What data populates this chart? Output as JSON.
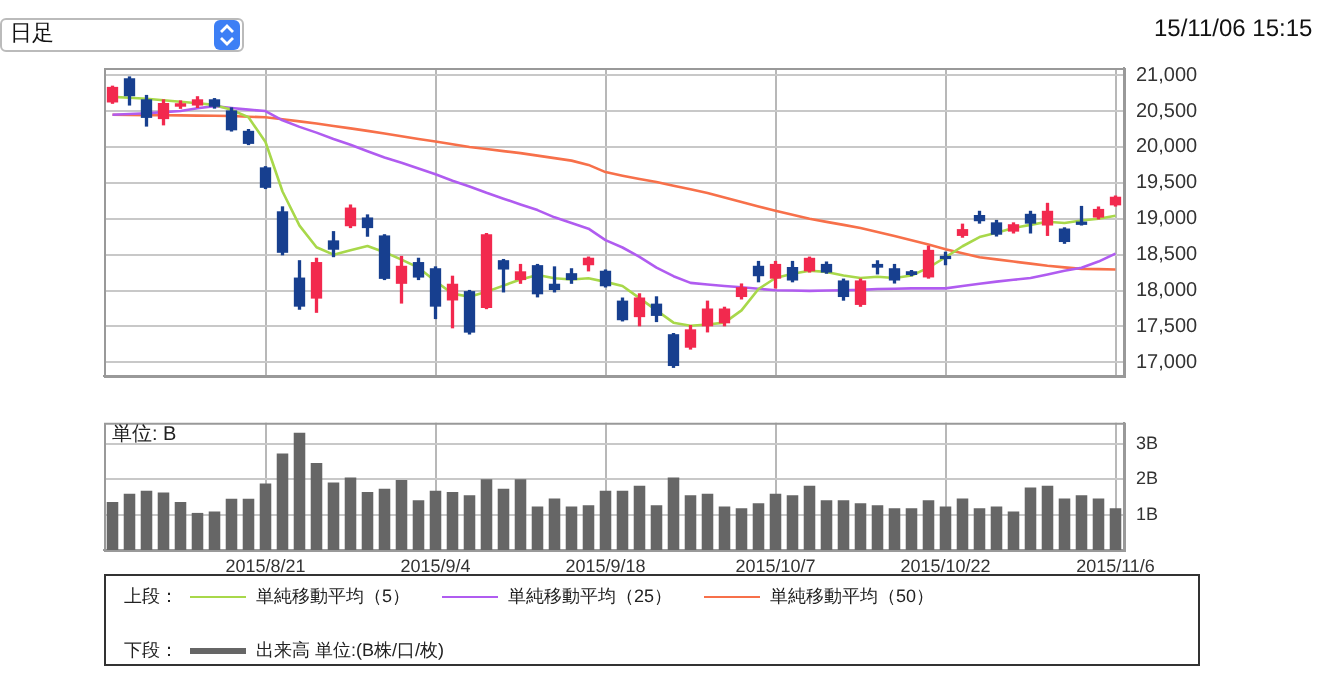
{
  "chart_data": [
    {
      "type": "candlestick",
      "annotations": [
        "日足",
        "15/11/06 15:15"
      ],
      "legend": "bottom",
      "legend_title": "上段：",
      "tick_labels": "y",
      "grid": true,
      "categories": [
        null,
        null,
        null,
        null,
        null,
        null,
        null,
        null,
        null,
        "2015/8/21",
        null,
        null,
        null,
        null,
        null,
        null,
        null,
        null,
        null,
        "2015/9/4",
        null,
        null,
        null,
        null,
        null,
        null,
        null,
        null,
        null,
        "2015/9/18",
        null,
        null,
        null,
        null,
        null,
        null,
        null,
        null,
        null,
        "2015/10/7",
        null,
        null,
        null,
        null,
        null,
        null,
        null,
        null,
        null,
        "2015/10/22",
        null,
        null,
        null,
        null,
        null,
        null,
        null,
        null,
        null,
        "2015/11/6"
      ],
      "ylim": [
        16810,
        21100
      ],
      "yticks": [
        {
          "value": 17000,
          "label": "17,000"
        },
        {
          "value": 17500,
          "label": "17,500"
        },
        {
          "value": 18000,
          "label": "18,000"
        },
        {
          "value": 18500,
          "label": "18,500"
        },
        {
          "value": 19000,
          "label": "19,000"
        },
        {
          "value": 19500,
          "label": "19,500"
        },
        {
          "value": 20000,
          "label": "20,000"
        },
        {
          "value": 20500,
          "label": "20,500"
        },
        {
          "value": 21000,
          "label": "21,000"
        }
      ],
      "ohlc": [
        [
          20629,
          20845,
          20610,
          20828
        ],
        [
          20948,
          20974,
          20586,
          20716
        ],
        [
          20655,
          20716,
          20293,
          20414
        ],
        [
          20397,
          20655,
          20310,
          20603
        ],
        [
          20570,
          20640,
          20540,
          20600
        ],
        [
          20586,
          20698,
          20552,
          20655
        ],
        [
          20655,
          20672,
          20543,
          20569
        ],
        [
          20500,
          20543,
          20224,
          20241
        ],
        [
          20216,
          20241,
          20035,
          20052
        ],
        [
          19707,
          19724,
          19423,
          19440
        ],
        [
          19095,
          19164,
          18500,
          18535
        ],
        [
          18172,
          18414,
          17742,
          17785
        ],
        [
          17897,
          18448,
          17699,
          18388
        ],
        [
          18690,
          18819,
          18474,
          18578
        ],
        [
          18905,
          19190,
          18879,
          19147
        ],
        [
          19009,
          19052,
          18759,
          18879
        ],
        [
          18759,
          18776,
          18155,
          18172
        ],
        [
          18103,
          18474,
          17828,
          18336
        ],
        [
          18388,
          18448,
          18155,
          18190
        ],
        [
          18302,
          18328,
          17612,
          17785
        ],
        [
          17871,
          18198,
          17483,
          18086
        ],
        [
          17983,
          18000,
          17397,
          17423
        ],
        [
          17768,
          18793,
          17750,
          18776
        ],
        [
          18414,
          18431,
          17983,
          18302
        ],
        [
          18155,
          18362,
          18103,
          18259
        ],
        [
          18345,
          18362,
          17914,
          17957
        ],
        [
          18086,
          18328,
          17983,
          18017
        ],
        [
          18233,
          18302,
          18103,
          18155
        ],
        [
          18362,
          18465,
          18276,
          18448
        ],
        [
          18267,
          18285,
          18052,
          18069
        ],
        [
          17851,
          17894,
          17579,
          17596
        ],
        [
          17639,
          17953,
          17511,
          17894
        ],
        [
          17809,
          17911,
          17570,
          17656
        ],
        [
          17383,
          17400,
          16932,
          16958
        ],
        [
          17213,
          17511,
          17187,
          17451
        ],
        [
          17511,
          17851,
          17426,
          17741
        ],
        [
          17553,
          17766,
          17511,
          17741
        ],
        [
          17919,
          18090,
          17885,
          18038
        ],
        [
          18336,
          18404,
          18124,
          18209
        ],
        [
          18175,
          18404,
          18038,
          18362
        ],
        [
          18319,
          18404,
          18124,
          18149
        ],
        [
          18277,
          18464,
          18260,
          18447
        ],
        [
          18362,
          18396,
          18243,
          18260
        ],
        [
          18132,
          18158,
          17868,
          17919
        ],
        [
          17809,
          18158,
          17783,
          18132
        ],
        [
          18362,
          18413,
          18234,
          18328
        ],
        [
          18302,
          18362,
          18107,
          18149
        ],
        [
          18260,
          18277,
          18209,
          18226
        ],
        [
          18192,
          18617,
          18175,
          18558
        ],
        [
          18464,
          18532,
          18362,
          18447
        ],
        [
          18770,
          18923,
          18745,
          18847
        ],
        [
          19043,
          19102,
          18941,
          18975
        ],
        [
          18941,
          18975,
          18762,
          18787
        ],
        [
          18830,
          18941,
          18804,
          18915
        ],
        [
          19060,
          19102,
          18804,
          18941
        ],
        [
          18915,
          19213,
          18770,
          19102
        ],
        [
          18855,
          18872,
          18660,
          18685
        ],
        [
          18941,
          19170,
          18915,
          18924
        ],
        [
          19026,
          19162,
          19000,
          19128
        ],
        [
          19196,
          19315,
          19179,
          19298
        ]
      ],
      "colors": [
        "#f2294e",
        "#173f8f",
        "#173f8f",
        "#f2294e",
        "#f2294e",
        "#f2294e",
        "#173f8f",
        "#173f8f",
        "#173f8f",
        "#173f8f",
        "#173f8f",
        "#173f8f",
        "#f2294e",
        "#173f8f",
        "#f2294e",
        "#173f8f",
        "#173f8f",
        "#f2294e",
        "#173f8f",
        "#173f8f",
        "#f2294e",
        "#173f8f",
        "#f2294e",
        "#173f8f",
        "#f2294e",
        "#173f8f",
        "#173f8f",
        "#173f8f",
        "#f2294e",
        "#173f8f",
        "#173f8f",
        "#f2294e",
        "#173f8f",
        "#173f8f",
        "#f2294e",
        "#f2294e",
        "#f2294e",
        "#f2294e",
        "#173f8f",
        "#f2294e",
        "#173f8f",
        "#f2294e",
        "#173f8f",
        "#173f8f",
        "#f2294e",
        "#173f8f",
        "#173f8f",
        "#173f8f",
        "#f2294e",
        "#173f8f",
        "#f2294e",
        "#173f8f",
        "#173f8f",
        "#f2294e",
        "#173f8f",
        "#f2294e",
        "#173f8f",
        "#173f8f",
        "#f2294e",
        "#f2294e"
      ],
      "series": [
        {
          "name": "単純移動平均（5）",
          "type": "line",
          "color": "#a8d84a",
          "values": [
            20698,
            20685,
            20672,
            20650,
            20629,
            20610,
            20586,
            20517,
            20414,
            20069,
            19380,
            18905,
            18604,
            18500,
            18560,
            18621,
            18535,
            18431,
            18319,
            18129,
            17957,
            17914,
            17983,
            18069,
            18155,
            18216,
            18172,
            18155,
            18172,
            18121,
            18064,
            17894,
            17724,
            17553,
            17511,
            17528,
            17553,
            17724,
            18022,
            18175,
            18234,
            18277,
            18260,
            18209,
            18175,
            18192,
            18175,
            18209,
            18319,
            18464,
            18617,
            18745,
            18804,
            18872,
            18915,
            18958,
            18941,
            18975,
            19000,
            19043
          ]
        },
        {
          "name": "単純移動平均（25）",
          "type": "line",
          "color": "#b05cf0",
          "values": [
            20448,
            20460,
            20470,
            20485,
            20500,
            20540,
            20569,
            20543,
            20520,
            20500,
            20371,
            20280,
            20200,
            20112,
            20030,
            19940,
            19854,
            19780,
            19700,
            19621,
            19530,
            19450,
            19362,
            19280,
            19200,
            19121,
            19020,
            18940,
            18862,
            18702,
            18600,
            18470,
            18319,
            18200,
            18107,
            18085,
            18064,
            18047,
            18025,
            18004,
            18000,
            17996,
            18000,
            18004,
            18010,
            18022,
            18026,
            18030,
            18030,
            18030,
            18064,
            18095,
            18124,
            18150,
            18175,
            18225,
            18277,
            18319,
            18404,
            18515
          ]
        },
        {
          "name": "単純移動平均（50）",
          "type": "line",
          "color": "#f7704a",
          "values": [
            20448,
            20446,
            20444,
            20442,
            20440,
            20437,
            20434,
            20431,
            20422,
            20414,
            20385,
            20356,
            20328,
            20293,
            20259,
            20224,
            20187,
            20150,
            20112,
            20075,
            20038,
            20000,
            19971,
            19942,
            19914,
            19880,
            19845,
            19810,
            19750,
            19650,
            19600,
            19555,
            19511,
            19460,
            19410,
            19358,
            19295,
            19232,
            19170,
            19113,
            19057,
            19000,
            18957,
            18915,
            18872,
            18815,
            18759,
            18702,
            18640,
            18575,
            18520,
            18464,
            18434,
            18404,
            18375,
            18345,
            18323,
            18302,
            18298,
            18294
          ]
        }
      ]
    },
    {
      "type": "bar",
      "annotations": [
        "単位: B"
      ],
      "legend": "bottom",
      "legend_title": "下段：",
      "grid": true,
      "categories": [
        null,
        null,
        null,
        null,
        null,
        null,
        null,
        null,
        null,
        "2015/8/21",
        null,
        null,
        null,
        null,
        null,
        null,
        null,
        null,
        null,
        "2015/9/4",
        null,
        null,
        null,
        null,
        null,
        null,
        null,
        null,
        null,
        "2015/9/18",
        null,
        null,
        null,
        null,
        null,
        null,
        null,
        null,
        null,
        "2015/10/7",
        null,
        null,
        null,
        null,
        null,
        null,
        null,
        null,
        null,
        "2015/10/22",
        null,
        null,
        null,
        null,
        null,
        null,
        null,
        null,
        null,
        "2015/11/6"
      ],
      "ylim": [
        0,
        3.6
      ],
      "yticks": [
        {
          "value": 1,
          "label": "1B"
        },
        {
          "value": 2,
          "label": "2B"
        },
        {
          "value": 3,
          "label": "3B"
        }
      ],
      "series": [
        {
          "name": "出来高 単位:(B株/口/枚)",
          "color": "#666666",
          "values": [
            1.36,
            1.59,
            1.68,
            1.63,
            1.36,
            1.05,
            1.09,
            1.45,
            1.45,
            1.88,
            2.73,
            3.32,
            2.46,
            1.91,
            2.05,
            1.64,
            1.73,
            1.98,
            1.41,
            1.68,
            1.64,
            1.55,
            2.0,
            1.73,
            2.0,
            1.23,
            1.46,
            1.23,
            1.27,
            1.68,
            1.68,
            1.82,
            1.27,
            2.05,
            1.55,
            1.59,
            1.23,
            1.18,
            1.32,
            1.59,
            1.55,
            1.82,
            1.41,
            1.41,
            1.32,
            1.27,
            1.18,
            1.18,
            1.41,
            1.23,
            1.46,
            1.18,
            1.23,
            1.09,
            1.77,
            1.82,
            1.46,
            1.55,
            1.46,
            1.18
          ]
        }
      ]
    }
  ]
}
